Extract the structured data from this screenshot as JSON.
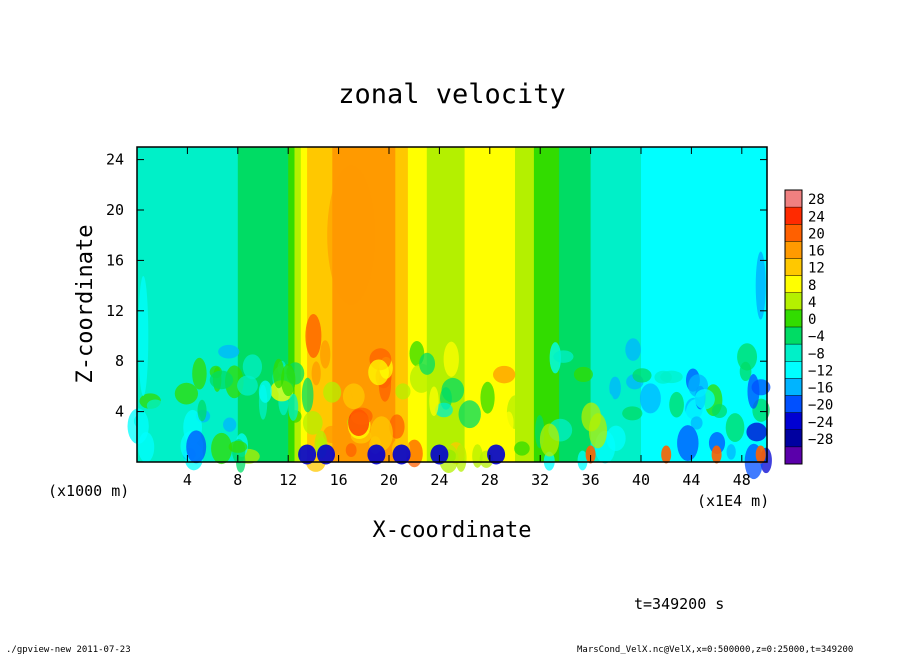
{
  "chart_data": {
    "type": "heatmap",
    "title": "zonal velocity",
    "xlabel": "X-coordinate",
    "ylabel": "Z-coordinate",
    "x_unit_label": "(x1E4 m)",
    "y_unit_label": "(x1000 m)",
    "xlim": [
      0,
      50
    ],
    "ylim": [
      0,
      25
    ],
    "x_ticks": [
      4,
      8,
      12,
      16,
      20,
      24,
      28,
      32,
      36,
      40,
      44,
      48
    ],
    "y_ticks": [
      4,
      8,
      12,
      16,
      20,
      24
    ],
    "colorbar_levels": [
      28,
      24,
      20,
      16,
      12,
      8,
      4,
      0,
      -4,
      -8,
      -12,
      -16,
      -20,
      -24,
      -28
    ],
    "colorbar_colors": [
      "#f08080",
      "#ff2a00",
      "#ff6000",
      "#ff9a00",
      "#ffc800",
      "#ffff00",
      "#b4f000",
      "#32dc00",
      "#00dc64",
      "#00f0c8",
      "#00ffff",
      "#00b4ff",
      "#0050ff",
      "#0000d2",
      "#0000a0",
      "#5a00aa"
    ],
    "zonal_profile": [
      {
        "x": 0,
        "u": -6
      },
      {
        "x": 4,
        "u": -7
      },
      {
        "x": 8,
        "u": -4
      },
      {
        "x": 12,
        "u": 0
      },
      {
        "x": 14,
        "u": 14
      },
      {
        "x": 16,
        "u": 17
      },
      {
        "x": 20,
        "u": 17
      },
      {
        "x": 22,
        "u": 10
      },
      {
        "x": 24,
        "u": 5
      },
      {
        "x": 26,
        "u": 8
      },
      {
        "x": 29,
        "u": 10
      },
      {
        "x": 32,
        "u": 2
      },
      {
        "x": 36,
        "u": -4
      },
      {
        "x": 40,
        "u": -8
      },
      {
        "x": 44,
        "u": -9
      },
      {
        "x": 48,
        "u": -10
      },
      {
        "x": 50,
        "u": -12
      }
    ]
  },
  "time_label": "t=349200 s",
  "footer_left": "./gpview-new   2011-07-23",
  "footer_right": "MarsCond_VelX.nc@VelX,x=0:500000,z=0:25000,t=349200"
}
